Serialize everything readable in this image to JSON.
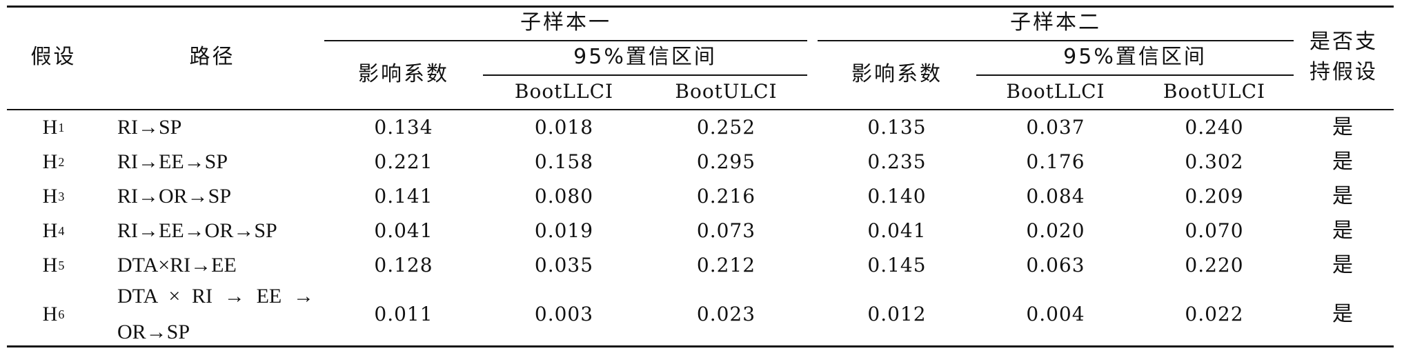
{
  "headers": {
    "hypothesis": "假设",
    "path": "路径",
    "subsample1": "子样本一",
    "subsample2": "子样本二",
    "coef": "影响系数",
    "ci": "95%置信区间",
    "llci": "BootLLCI",
    "ulci": "BootULCI",
    "support_line1": "是否支",
    "support_line2": "持假设"
  },
  "rows": [
    {
      "h": "H",
      "sub": "1",
      "path": "RI→SP",
      "c1": "0.134",
      "l1": "0.018",
      "u1": "0.252",
      "c2": "0.135",
      "l2": "0.037",
      "u2": "0.240",
      "support": "是"
    },
    {
      "h": "H",
      "sub": "2",
      "path": "RI→EE→SP",
      "c1": "0.221",
      "l1": "0.158",
      "u1": "0.295",
      "c2": "0.235",
      "l2": "0.176",
      "u2": "0.302",
      "support": "是"
    },
    {
      "h": "H",
      "sub": "3",
      "path": "RI→OR→SP",
      "c1": "0.141",
      "l1": "0.080",
      "u1": "0.216",
      "c2": "0.140",
      "l2": "0.084",
      "u2": "0.209",
      "support": "是"
    },
    {
      "h": "H",
      "sub": "4",
      "path": "RI→EE→OR→SP",
      "c1": "0.041",
      "l1": "0.019",
      "u1": "0.073",
      "c2": "0.041",
      "l2": "0.020",
      "u2": "0.070",
      "support": "是"
    },
    {
      "h": "H",
      "sub": "5",
      "path": "DTA×RI→EE",
      "c1": "0.128",
      "l1": "0.035",
      "u1": "0.212",
      "c2": "0.145",
      "l2": "0.063",
      "u2": "0.220",
      "support": "是"
    },
    {
      "h": "H",
      "sub": "6",
      "path": "DTA × RI → EE → OR→SP",
      "c1": "0.011",
      "l1": "0.003",
      "u1": "0.023",
      "c2": "0.012",
      "l2": "0.004",
      "u2": "0.022",
      "support": "是"
    }
  ]
}
